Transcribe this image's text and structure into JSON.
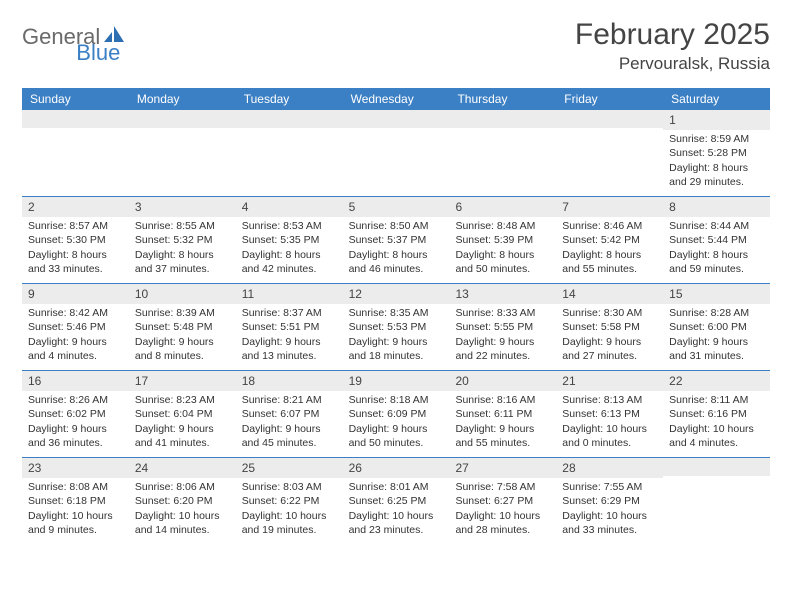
{
  "logo": {
    "word1": "General",
    "word2": "Blue"
  },
  "title": "February 2025",
  "location": "Pervouralsk, Russia",
  "colors": {
    "header_bg": "#3b7fc4",
    "header_text": "#ffffff",
    "daynum_bg": "#ececec",
    "border": "#3b7fc4",
    "text": "#333333",
    "logo_gray": "#6a6a6a",
    "logo_blue": "#3b7fc4"
  },
  "day_headers": [
    "Sunday",
    "Monday",
    "Tuesday",
    "Wednesday",
    "Thursday",
    "Friday",
    "Saturday"
  ],
  "weeks": [
    [
      {
        "n": "",
        "sr": "",
        "ss": "",
        "dl": ""
      },
      {
        "n": "",
        "sr": "",
        "ss": "",
        "dl": ""
      },
      {
        "n": "",
        "sr": "",
        "ss": "",
        "dl": ""
      },
      {
        "n": "",
        "sr": "",
        "ss": "",
        "dl": ""
      },
      {
        "n": "",
        "sr": "",
        "ss": "",
        "dl": ""
      },
      {
        "n": "",
        "sr": "",
        "ss": "",
        "dl": ""
      },
      {
        "n": "1",
        "sr": "Sunrise: 8:59 AM",
        "ss": "Sunset: 5:28 PM",
        "dl": "Daylight: 8 hours and 29 minutes."
      }
    ],
    [
      {
        "n": "2",
        "sr": "Sunrise: 8:57 AM",
        "ss": "Sunset: 5:30 PM",
        "dl": "Daylight: 8 hours and 33 minutes."
      },
      {
        "n": "3",
        "sr": "Sunrise: 8:55 AM",
        "ss": "Sunset: 5:32 PM",
        "dl": "Daylight: 8 hours and 37 minutes."
      },
      {
        "n": "4",
        "sr": "Sunrise: 8:53 AM",
        "ss": "Sunset: 5:35 PM",
        "dl": "Daylight: 8 hours and 42 minutes."
      },
      {
        "n": "5",
        "sr": "Sunrise: 8:50 AM",
        "ss": "Sunset: 5:37 PM",
        "dl": "Daylight: 8 hours and 46 minutes."
      },
      {
        "n": "6",
        "sr": "Sunrise: 8:48 AM",
        "ss": "Sunset: 5:39 PM",
        "dl": "Daylight: 8 hours and 50 minutes."
      },
      {
        "n": "7",
        "sr": "Sunrise: 8:46 AM",
        "ss": "Sunset: 5:42 PM",
        "dl": "Daylight: 8 hours and 55 minutes."
      },
      {
        "n": "8",
        "sr": "Sunrise: 8:44 AM",
        "ss": "Sunset: 5:44 PM",
        "dl": "Daylight: 8 hours and 59 minutes."
      }
    ],
    [
      {
        "n": "9",
        "sr": "Sunrise: 8:42 AM",
        "ss": "Sunset: 5:46 PM",
        "dl": "Daylight: 9 hours and 4 minutes."
      },
      {
        "n": "10",
        "sr": "Sunrise: 8:39 AM",
        "ss": "Sunset: 5:48 PM",
        "dl": "Daylight: 9 hours and 8 minutes."
      },
      {
        "n": "11",
        "sr": "Sunrise: 8:37 AM",
        "ss": "Sunset: 5:51 PM",
        "dl": "Daylight: 9 hours and 13 minutes."
      },
      {
        "n": "12",
        "sr": "Sunrise: 8:35 AM",
        "ss": "Sunset: 5:53 PM",
        "dl": "Daylight: 9 hours and 18 minutes."
      },
      {
        "n": "13",
        "sr": "Sunrise: 8:33 AM",
        "ss": "Sunset: 5:55 PM",
        "dl": "Daylight: 9 hours and 22 minutes."
      },
      {
        "n": "14",
        "sr": "Sunrise: 8:30 AM",
        "ss": "Sunset: 5:58 PM",
        "dl": "Daylight: 9 hours and 27 minutes."
      },
      {
        "n": "15",
        "sr": "Sunrise: 8:28 AM",
        "ss": "Sunset: 6:00 PM",
        "dl": "Daylight: 9 hours and 31 minutes."
      }
    ],
    [
      {
        "n": "16",
        "sr": "Sunrise: 8:26 AM",
        "ss": "Sunset: 6:02 PM",
        "dl": "Daylight: 9 hours and 36 minutes."
      },
      {
        "n": "17",
        "sr": "Sunrise: 8:23 AM",
        "ss": "Sunset: 6:04 PM",
        "dl": "Daylight: 9 hours and 41 minutes."
      },
      {
        "n": "18",
        "sr": "Sunrise: 8:21 AM",
        "ss": "Sunset: 6:07 PM",
        "dl": "Daylight: 9 hours and 45 minutes."
      },
      {
        "n": "19",
        "sr": "Sunrise: 8:18 AM",
        "ss": "Sunset: 6:09 PM",
        "dl": "Daylight: 9 hours and 50 minutes."
      },
      {
        "n": "20",
        "sr": "Sunrise: 8:16 AM",
        "ss": "Sunset: 6:11 PM",
        "dl": "Daylight: 9 hours and 55 minutes."
      },
      {
        "n": "21",
        "sr": "Sunrise: 8:13 AM",
        "ss": "Sunset: 6:13 PM",
        "dl": "Daylight: 10 hours and 0 minutes."
      },
      {
        "n": "22",
        "sr": "Sunrise: 8:11 AM",
        "ss": "Sunset: 6:16 PM",
        "dl": "Daylight: 10 hours and 4 minutes."
      }
    ],
    [
      {
        "n": "23",
        "sr": "Sunrise: 8:08 AM",
        "ss": "Sunset: 6:18 PM",
        "dl": "Daylight: 10 hours and 9 minutes."
      },
      {
        "n": "24",
        "sr": "Sunrise: 8:06 AM",
        "ss": "Sunset: 6:20 PM",
        "dl": "Daylight: 10 hours and 14 minutes."
      },
      {
        "n": "25",
        "sr": "Sunrise: 8:03 AM",
        "ss": "Sunset: 6:22 PM",
        "dl": "Daylight: 10 hours and 19 minutes."
      },
      {
        "n": "26",
        "sr": "Sunrise: 8:01 AM",
        "ss": "Sunset: 6:25 PM",
        "dl": "Daylight: 10 hours and 23 minutes."
      },
      {
        "n": "27",
        "sr": "Sunrise: 7:58 AM",
        "ss": "Sunset: 6:27 PM",
        "dl": "Daylight: 10 hours and 28 minutes."
      },
      {
        "n": "28",
        "sr": "Sunrise: 7:55 AM",
        "ss": "Sunset: 6:29 PM",
        "dl": "Daylight: 10 hours and 33 minutes."
      },
      {
        "n": "",
        "sr": "",
        "ss": "",
        "dl": ""
      }
    ]
  ]
}
